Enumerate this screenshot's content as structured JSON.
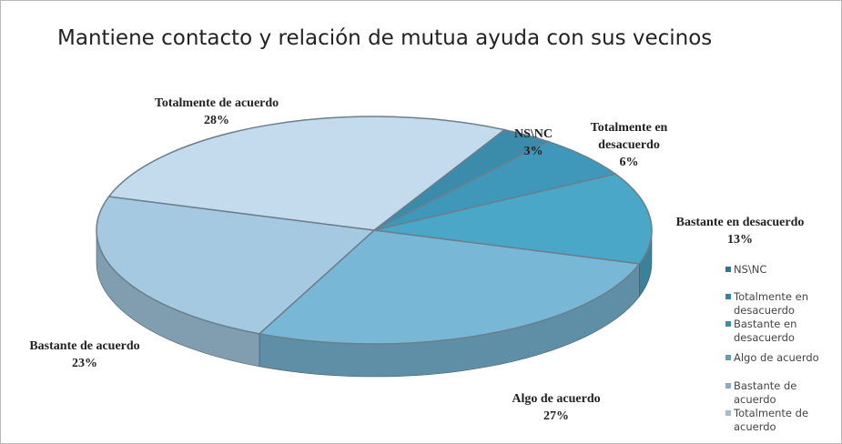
{
  "chart_data": {
    "type": "pie3d",
    "title": "Mantiene contacto y relación de mutua ayuda con sus vecinos",
    "categories": [
      "NS\\NC",
      "Totalmente en desacuerdo",
      "Bastante en desacuerdo",
      "Algo de acuerdo",
      "Bastante de acuerdo",
      "Totalmente de acuerdo"
    ],
    "values": [
      3,
      6,
      13,
      27,
      23,
      28
    ],
    "value_labels": [
      "3%",
      "6%",
      "13%",
      "27%",
      "23%",
      "28%"
    ],
    "colors": [
      "#3b8cab",
      "#3f98b9",
      "#4aa7c7",
      "#79b7d6",
      "#a5c9e1",
      "#c4dbed"
    ],
    "legend": "right"
  }
}
